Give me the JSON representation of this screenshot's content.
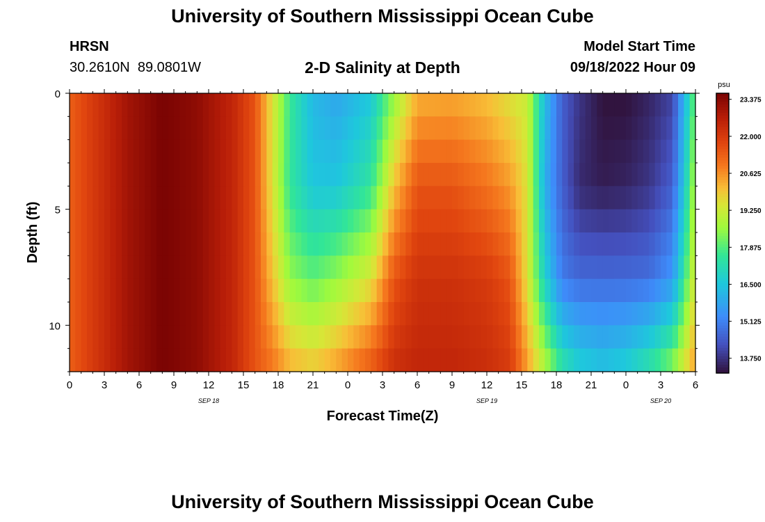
{
  "header": {
    "title": "University of Southern Mississippi Ocean Cube",
    "station": "HRSN",
    "coords": "30.2610N  89.0801W",
    "plot_title": "2-D Salinity at Depth",
    "start_label": "Model Start Time",
    "start_value": "09/18/2022 Hour 09"
  },
  "footer": {
    "title": "University of Southern Mississippi Ocean Cube"
  },
  "colors": {
    "background": "#ffffff",
    "text": "#000000"
  },
  "chart_data": {
    "type": "heatmap",
    "title": "2-D Salinity at Depth",
    "xlabel": "Forecast Time(Z)",
    "ylabel": "Depth (ft)",
    "x_range_hours": [
      0,
      54
    ],
    "x_ticks": [
      {
        "hour": 0,
        "label": "0"
      },
      {
        "hour": 3,
        "label": "3"
      },
      {
        "hour": 6,
        "label": "6"
      },
      {
        "hour": 9,
        "label": "9"
      },
      {
        "hour": 12,
        "label": "12"
      },
      {
        "hour": 15,
        "label": "15"
      },
      {
        "hour": 18,
        "label": "18"
      },
      {
        "hour": 21,
        "label": "21"
      },
      {
        "hour": 24,
        "label": "0"
      },
      {
        "hour": 27,
        "label": "3"
      },
      {
        "hour": 30,
        "label": "6"
      },
      {
        "hour": 33,
        "label": "9"
      },
      {
        "hour": 36,
        "label": "12"
      },
      {
        "hour": 39,
        "label": "15"
      },
      {
        "hour": 42,
        "label": "18"
      },
      {
        "hour": 45,
        "label": "21"
      },
      {
        "hour": 48,
        "label": "0"
      },
      {
        "hour": 51,
        "label": "3"
      },
      {
        "hour": 54,
        "label": "6"
      }
    ],
    "date_labels": [
      {
        "hour": 12,
        "label": "SEP 18"
      },
      {
        "hour": 36,
        "label": "SEP 19"
      },
      {
        "hour": 51,
        "label": "SEP 20"
      }
    ],
    "y_range_ft": [
      0,
      12
    ],
    "y_ticks": [
      0,
      5,
      10
    ],
    "colorbar": {
      "unit": "psu",
      "min": 13.2,
      "max": 23.6,
      "tick_values": [
        23.375,
        22.0,
        20.625,
        19.25,
        17.875,
        16.5,
        15.125,
        13.75
      ],
      "tick_labels": [
        "23.375",
        "22.000",
        "20.625",
        "19.250",
        "17.875",
        "16.500",
        "15.125",
        "13.750"
      ]
    },
    "grid": false,
    "salinity_samples": {
      "depths_ft": [
        0,
        4,
        8,
        12
      ],
      "hours": [
        0,
        2,
        5,
        8,
        11,
        14,
        16,
        17.5,
        19,
        21,
        23,
        26,
        28,
        30,
        33,
        36,
        38,
        39.5,
        41,
        42.5,
        44,
        46,
        48,
        50,
        52,
        53,
        54
      ],
      "values": [
        [
          21.3,
          22.0,
          23.0,
          23.6,
          23.3,
          22.5,
          21.5,
          19.5,
          17.6,
          16.2,
          15.8,
          16.5,
          18.5,
          20.2,
          20.3,
          20.0,
          19.5,
          19.2,
          16.3,
          14.5,
          13.8,
          13.2,
          13.2,
          13.5,
          14.0,
          16.0,
          18.2
        ],
        [
          21.3,
          22.0,
          23.0,
          23.6,
          23.3,
          22.5,
          21.5,
          19.5,
          17.5,
          16.5,
          16.5,
          17.5,
          20.0,
          21.5,
          21.5,
          21.0,
          20.5,
          19.5,
          16.0,
          14.5,
          13.6,
          13.4,
          13.5,
          13.8,
          14.5,
          16.5,
          19.0
        ],
        [
          21.3,
          22.0,
          23.0,
          23.6,
          23.3,
          22.5,
          21.5,
          20.0,
          18.5,
          18.0,
          18.5,
          19.5,
          21.5,
          22.2,
          22.2,
          22.0,
          21.5,
          19.5,
          16.8,
          15.0,
          14.7,
          14.7,
          14.7,
          14.8,
          15.5,
          17.5,
          19.5
        ],
        [
          21.3,
          22.0,
          23.0,
          23.6,
          23.3,
          22.5,
          21.5,
          21.0,
          20.3,
          20.0,
          20.5,
          21.5,
          22.3,
          22.5,
          22.5,
          22.3,
          22.0,
          20.5,
          19.0,
          17.5,
          16.8,
          16.5,
          16.8,
          17.5,
          18.5,
          19.5,
          20.5
        ]
      ]
    }
  }
}
